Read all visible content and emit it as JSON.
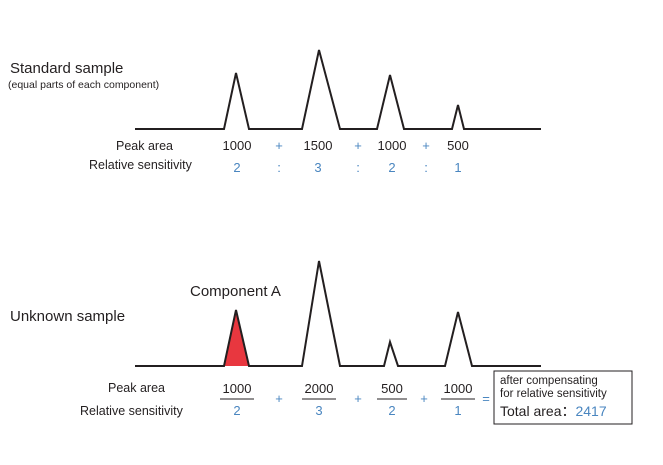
{
  "standard": {
    "title": "Standard sample",
    "subtitle": "(equal parts of each component)",
    "peak_area_label": "Peak area",
    "sensitivity_label": "Relative sensitivity",
    "areas": [
      "1000",
      "1500",
      "1000",
      "500"
    ],
    "plus": "+",
    "sensitivities": [
      "2",
      "3",
      "2",
      "1"
    ],
    "colon": ":"
  },
  "unknown": {
    "title": "Unknown sample",
    "component_label": "Component A",
    "peak_area_label": "Peak area",
    "sensitivity_label": "Relative sensitivity",
    "numerators": [
      "1000",
      "2000",
      "500",
      "1000"
    ],
    "denominators": [
      "2",
      "3",
      "2",
      "1"
    ],
    "plus": "+",
    "equals": "=",
    "result": {
      "line1": "after compensating",
      "line2": "for relative sensitivity",
      "total_label": "Total area：",
      "total_value": "2417"
    }
  },
  "colors": {
    "text": "#231f20",
    "accent_blue": "#4a86c0",
    "component_fill": "#e8373f"
  }
}
